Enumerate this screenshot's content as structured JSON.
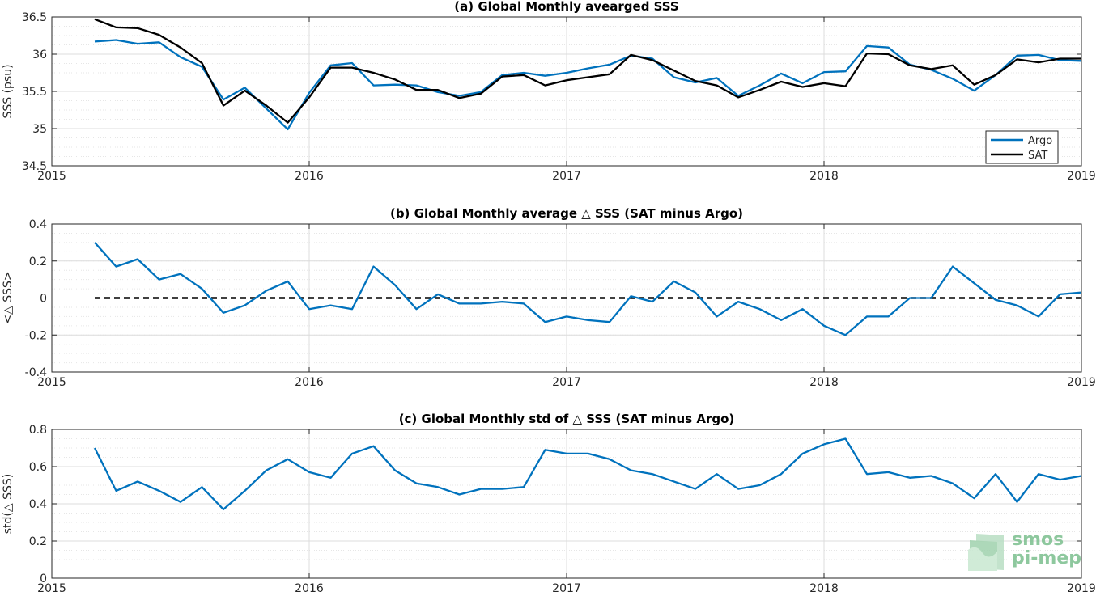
{
  "chart_data": [
    {
      "type": "line",
      "title": "(a) Global Monthly avearged SSS",
      "xlabel": "",
      "ylabel": "SSS (psu)",
      "xlim": [
        2015,
        2019
      ],
      "ylim": [
        34.5,
        36.5
      ],
      "xticks": [
        "2015",
        "2016",
        "2017",
        "2018",
        "2019"
      ],
      "yticks": [
        "34.5",
        "35",
        "35.5",
        "36",
        "36.5"
      ],
      "grid": true,
      "legend_position": "bottom-right",
      "x": [
        "2015-03",
        "2015-04",
        "2015-05",
        "2015-06",
        "2015-07",
        "2015-08",
        "2015-09",
        "2015-10",
        "2015-11",
        "2015-12",
        "2016-01",
        "2016-02",
        "2016-03",
        "2016-04",
        "2016-05",
        "2016-06",
        "2016-07",
        "2016-08",
        "2016-09",
        "2016-10",
        "2016-11",
        "2016-12",
        "2017-01",
        "2017-02",
        "2017-03",
        "2017-04",
        "2017-05",
        "2017-06",
        "2017-07",
        "2017-08",
        "2017-09",
        "2017-10",
        "2017-11",
        "2017-12",
        "2018-01",
        "2018-02",
        "2018-03",
        "2018-04",
        "2018-05",
        "2018-06",
        "2018-07",
        "2018-08",
        "2018-09",
        "2018-10",
        "2018-11",
        "2018-12",
        "2019-01"
      ],
      "series": [
        {
          "name": "Argo",
          "color": "#0072bd",
          "values": [
            36.17,
            36.19,
            36.14,
            36.16,
            35.96,
            35.83,
            35.39,
            35.55,
            35.27,
            34.99,
            35.48,
            35.85,
            35.88,
            35.58,
            35.59,
            35.58,
            35.49,
            35.44,
            35.49,
            35.72,
            35.75,
            35.71,
            35.75,
            35.81,
            35.86,
            35.98,
            35.94,
            35.69,
            35.62,
            35.68,
            35.44,
            35.58,
            35.74,
            35.61,
            35.76,
            35.77,
            36.11,
            36.09,
            35.86,
            35.79,
            35.67,
            35.51,
            35.72,
            35.98,
            35.99,
            35.92,
            35.91
          ]
        },
        {
          "name": "SAT",
          "color": "#000000",
          "values": [
            36.47,
            36.36,
            36.35,
            36.26,
            36.09,
            35.88,
            35.31,
            35.51,
            35.31,
            35.08,
            35.42,
            35.82,
            35.82,
            35.75,
            35.66,
            35.52,
            35.52,
            35.41,
            35.47,
            35.7,
            35.72,
            35.58,
            35.65,
            35.69,
            35.73,
            35.99,
            35.92,
            35.78,
            35.64,
            35.58,
            35.42,
            35.52,
            35.63,
            35.56,
            35.61,
            35.57,
            36.01,
            36.0,
            35.85,
            35.8,
            35.85,
            35.59,
            35.72,
            35.93,
            35.89,
            35.94,
            35.94
          ]
        }
      ]
    },
    {
      "type": "line",
      "title": "(b) Global Monthly average △ SSS (SAT minus Argo)",
      "xlabel": "",
      "ylabel": "<△ SSS>",
      "xlim": [
        2015,
        2019
      ],
      "ylim": [
        -0.4,
        0.4
      ],
      "xticks": [
        "2015",
        "2016",
        "2017",
        "2018",
        "2019"
      ],
      "yticks": [
        "-0.4",
        "-0.2",
        "0",
        "0.2",
        "0.4"
      ],
      "grid": true,
      "reference_line": 0,
      "x": [
        "2015-03",
        "2015-04",
        "2015-05",
        "2015-06",
        "2015-07",
        "2015-08",
        "2015-09",
        "2015-10",
        "2015-11",
        "2015-12",
        "2016-01",
        "2016-02",
        "2016-03",
        "2016-04",
        "2016-05",
        "2016-06",
        "2016-07",
        "2016-08",
        "2016-09",
        "2016-10",
        "2016-11",
        "2016-12",
        "2017-01",
        "2017-02",
        "2017-03",
        "2017-04",
        "2017-05",
        "2017-06",
        "2017-07",
        "2017-08",
        "2017-09",
        "2017-10",
        "2017-11",
        "2017-12",
        "2018-01",
        "2018-02",
        "2018-03",
        "2018-04",
        "2018-05",
        "2018-06",
        "2018-07",
        "2018-08",
        "2018-09",
        "2018-10",
        "2018-11",
        "2018-12",
        "2019-01"
      ],
      "series": [
        {
          "color": "#0072bd",
          "values": [
            0.3,
            0.17,
            0.21,
            0.1,
            0.13,
            0.05,
            -0.08,
            -0.04,
            0.04,
            0.09,
            -0.06,
            -0.04,
            -0.06,
            0.17,
            0.07,
            -0.06,
            0.02,
            -0.03,
            -0.03,
            -0.02,
            -0.03,
            -0.13,
            -0.1,
            -0.12,
            -0.13,
            0.01,
            -0.02,
            0.09,
            0.03,
            -0.1,
            -0.02,
            -0.06,
            -0.12,
            -0.06,
            -0.15,
            -0.2,
            -0.1,
            -0.1,
            0.0,
            0.0,
            0.17,
            0.08,
            -0.01,
            -0.04,
            -0.1,
            0.02,
            0.03
          ]
        }
      ]
    },
    {
      "type": "line",
      "title": "(c) Global Monthly std of △ SSS (SAT minus Argo)",
      "xlabel": "",
      "ylabel": "std(△ SSS)",
      "xlim": [
        2015,
        2019
      ],
      "ylim": [
        0,
        0.8
      ],
      "xticks": [
        "2015",
        "2016",
        "2017",
        "2018",
        "2019"
      ],
      "yticks": [
        "0",
        "0.2",
        "0.4",
        "0.6",
        "0.8"
      ],
      "grid": true,
      "x": [
        "2015-03",
        "2015-04",
        "2015-05",
        "2015-06",
        "2015-07",
        "2015-08",
        "2015-09",
        "2015-10",
        "2015-11",
        "2015-12",
        "2016-01",
        "2016-02",
        "2016-03",
        "2016-04",
        "2016-05",
        "2016-06",
        "2016-07",
        "2016-08",
        "2016-09",
        "2016-10",
        "2016-11",
        "2016-12",
        "2017-01",
        "2017-02",
        "2017-03",
        "2017-04",
        "2017-05",
        "2017-06",
        "2017-07",
        "2017-08",
        "2017-09",
        "2017-10",
        "2017-11",
        "2017-12",
        "2018-01",
        "2018-02",
        "2018-03",
        "2018-04",
        "2018-05",
        "2018-06",
        "2018-07",
        "2018-08",
        "2018-09",
        "2018-10",
        "2018-11",
        "2018-12",
        "2019-01"
      ],
      "series": [
        {
          "color": "#0072bd",
          "values": [
            0.7,
            0.47,
            0.52,
            0.47,
            0.41,
            0.49,
            0.37,
            0.47,
            0.58,
            0.64,
            0.57,
            0.54,
            0.67,
            0.71,
            0.58,
            0.51,
            0.49,
            0.45,
            0.48,
            0.48,
            0.49,
            0.69,
            0.67,
            0.67,
            0.64,
            0.58,
            0.56,
            0.52,
            0.48,
            0.56,
            0.48,
            0.5,
            0.56,
            0.67,
            0.72,
            0.75,
            0.56,
            0.57,
            0.54,
            0.55,
            0.51,
            0.43,
            0.56,
            0.41,
            0.56,
            0.53,
            0.55
          ]
        }
      ]
    }
  ],
  "logo": {
    "line1": "smos",
    "line2": "pi-mep",
    "color": "#7bbf8e"
  }
}
